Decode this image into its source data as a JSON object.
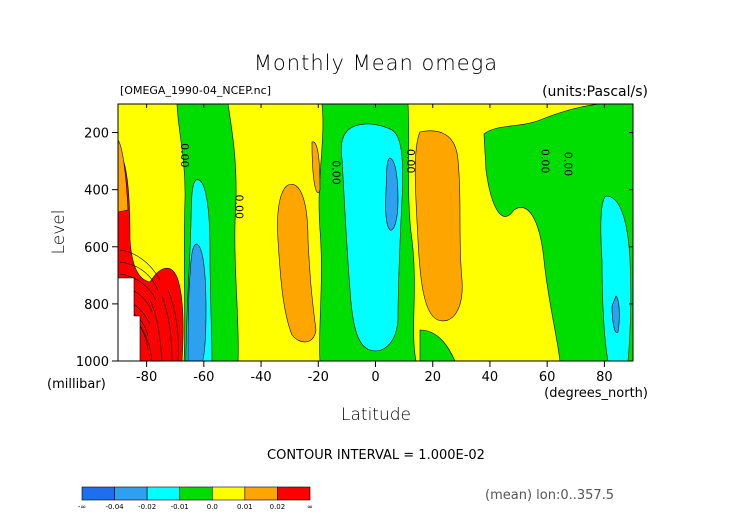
{
  "chart_data": {
    "type": "heatmap",
    "subtype": "filled-contour",
    "title": "Monthly Mean omega",
    "file_label": "[OMEGA_1990-04_NCEP.nc]",
    "units_label": "(units:Pascal/s)",
    "xlabel": "Latitude",
    "x_units": "(degrees_north)",
    "ylabel": "Level",
    "y_units": "(millibar)",
    "xlim": [
      -90,
      90
    ],
    "ylim": [
      1000,
      100
    ],
    "y_inverted": true,
    "x_ticks": [
      -80,
      -60,
      -40,
      -20,
      0,
      20,
      40,
      60,
      80
    ],
    "x_tick_labels": [
      "-80",
      "-60",
      "-40",
      "-20",
      "0",
      "20",
      "40",
      "60",
      "80"
    ],
    "y_ticks": [
      200,
      400,
      600,
      800,
      1000
    ],
    "y_tick_labels": [
      "200",
      "400",
      "600",
      "800",
      "1000"
    ],
    "contour_interval_text": "CONTOUR INTERVAL = 1.000E-02",
    "mean_text": "(mean) lon:0..357.5",
    "zero_contour_label": "0.00",
    "zero_label_positions": [
      {
        "lat": -68,
        "level": 280
      },
      {
        "lat": -49,
        "level": 460
      },
      {
        "lat": -15,
        "level": 340
      },
      {
        "lat": 11,
        "level": 300
      },
      {
        "lat": 58,
        "level": 300
      },
      {
        "lat": 66,
        "level": 310
      }
    ],
    "colorbar": {
      "levels": [
        -0.04,
        -0.02,
        -0.01,
        0.0,
        0.01,
        0.02
      ],
      "level_labels": [
        "-0.04",
        "-0.02",
        "-0.01",
        "0.0",
        "0.01",
        "0.02"
      ],
      "end_labels": [
        "-∞",
        "∞"
      ],
      "colors": [
        "#1e6ef0",
        "#2ea0f0",
        "#00ffff",
        "#00dd00",
        "#ffff00",
        "#ffa500",
        "#ff0000"
      ]
    },
    "regions": [
      {
        "value_range": "0.00 to 0.01",
        "color": "#ffff00",
        "lat_range": [
          -90,
          90
        ],
        "level_range": [
          100,
          1000
        ],
        "note": "background"
      },
      {
        "value_range": "-0.01 to 0.00",
        "color": "#00dd00",
        "lat_range": [
          -60,
          -40
        ],
        "level_range": [
          100,
          1000
        ]
      },
      {
        "value_range": "-0.01 to 0.00",
        "color": "#00dd00",
        "lat_range": [
          -24,
          20
        ],
        "level_range": [
          100,
          1000
        ]
      },
      {
        "value_range": "-0.01 to 0.00",
        "color": "#00dd00",
        "lat_range": [
          38,
          90
        ],
        "level_range": [
          100,
          1000
        ]
      },
      {
        "value_range": "-0.02 to -0.01",
        "color": "#00ffff",
        "lat_range": [
          -69,
          -60
        ],
        "level_range": [
          350,
          1000
        ]
      },
      {
        "value_range": "-0.02 to -0.01",
        "color": "#00ffff",
        "lat_range": [
          -10,
          8
        ],
        "level_range": [
          120,
          960
        ]
      },
      {
        "value_range": "-0.02 to -0.01",
        "color": "#00ffff",
        "lat_range": [
          74,
          90
        ],
        "level_range": [
          380,
          1000
        ]
      },
      {
        "value_range": "-0.04 to -0.02",
        "color": "#2ea0f0",
        "lat_range": [
          -67,
          -62
        ],
        "level_range": [
          540,
          1000
        ]
      },
      {
        "value_range": "-0.04 to -0.02",
        "color": "#2ea0f0",
        "lat_range": [
          3,
          7
        ],
        "level_range": [
          250,
          480
        ]
      },
      {
        "value_range": "0.01 to 0.02",
        "color": "#ffa500",
        "lat_range": [
          -35,
          -22
        ],
        "level_range": [
          270,
          920
        ]
      },
      {
        "value_range": "0.01 to 0.02",
        "color": "#ffa500",
        "lat_range": [
          12,
          30
        ],
        "level_range": [
          140,
          900
        ]
      },
      {
        "value_range": "0.02 to inf",
        "color": "#ff0000",
        "lat_range": [
          -90,
          -65
        ],
        "level_range": [
          420,
          1000
        ]
      }
    ]
  }
}
